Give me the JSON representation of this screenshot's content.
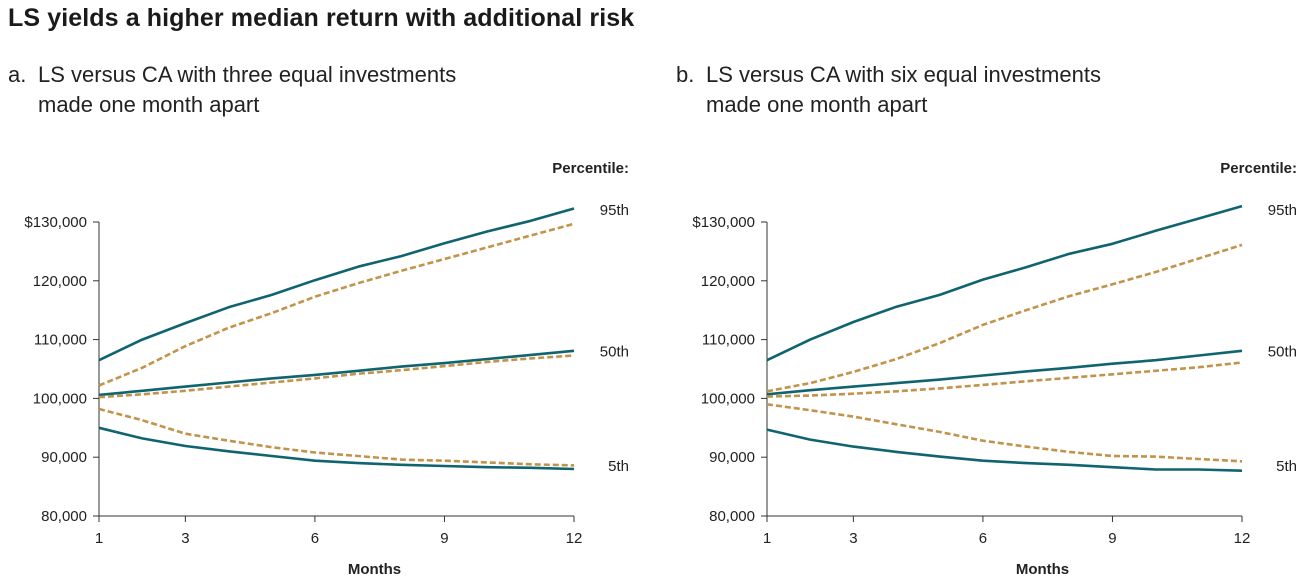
{
  "title": "LS yields a higher median return with additional risk",
  "chart_data": [
    {
      "type": "line",
      "label": "a.",
      "subtitle_line1": "LS versus CA with three equal investments",
      "subtitle_line2": "made one month apart",
      "xlabel": "Months",
      "legend_title": "Percentile:",
      "xlim": [
        1,
        12
      ],
      "ylim": [
        80000,
        130000
      ],
      "x_ticks": [
        1,
        3,
        6,
        9,
        12
      ],
      "y_ticks": [
        80000,
        90000,
        100000,
        110000,
        120000,
        130000
      ],
      "y_tick_labels": [
        "80,000",
        "90,000",
        "100,000",
        "110,000",
        "120,000",
        "$130,000"
      ],
      "percentile_labels": [
        {
          "text": "95th",
          "value": 132000
        },
        {
          "text": "50th",
          "value": 108000
        },
        {
          "text": "5th",
          "value": 88500
        }
      ],
      "x": [
        1,
        2,
        3,
        4,
        5,
        6,
        7,
        8,
        9,
        10,
        11,
        12
      ],
      "series": [
        {
          "name": "LS 95th",
          "style": "solid",
          "values": [
            106500,
            110000,
            112800,
            115500,
            117600,
            120100,
            122400,
            124200,
            126400,
            128400,
            130200,
            132300
          ]
        },
        {
          "name": "CA 95th",
          "style": "dashed",
          "values": [
            102200,
            105200,
            108900,
            112000,
            114500,
            117300,
            119600,
            121700,
            123700,
            125700,
            127700,
            129700
          ]
        },
        {
          "name": "LS 50th",
          "style": "solid",
          "values": [
            100600,
            101300,
            102000,
            102700,
            103400,
            104000,
            104700,
            105400,
            106000,
            106700,
            107400,
            108100
          ]
        },
        {
          "name": "CA 50th",
          "style": "dashed",
          "values": [
            100200,
            100700,
            101300,
            102000,
            102700,
            103400,
            104200,
            104800,
            105500,
            106200,
            106800,
            107300
          ]
        },
        {
          "name": "CA 5th",
          "style": "dashed",
          "values": [
            98200,
            96300,
            94000,
            92800,
            91700,
            90800,
            90200,
            89600,
            89400,
            89100,
            88800,
            88600
          ]
        },
        {
          "name": "LS 5th",
          "style": "solid",
          "values": [
            95000,
            93200,
            91900,
            91000,
            90200,
            89400,
            89000,
            88700,
            88500,
            88300,
            88200,
            88000
          ]
        }
      ]
    },
    {
      "type": "line",
      "label": "b.",
      "subtitle_line1": "LS versus CA with six equal investments",
      "subtitle_line2": "made one month apart",
      "xlabel": "Months",
      "legend_title": "Percentile:",
      "xlim": [
        1,
        12
      ],
      "ylim": [
        80000,
        130000
      ],
      "x_ticks": [
        1,
        3,
        6,
        9,
        12
      ],
      "y_ticks": [
        80000,
        90000,
        100000,
        110000,
        120000,
        130000
      ],
      "y_tick_labels": [
        "80,000",
        "90,000",
        "100,000",
        "110,000",
        "120,000",
        "$130,000"
      ],
      "percentile_labels": [
        {
          "text": "95th",
          "value": 132000
        },
        {
          "text": "50th",
          "value": 108000
        },
        {
          "text": "5th",
          "value": 88500
        }
      ],
      "x": [
        1,
        2,
        3,
        4,
        5,
        6,
        7,
        8,
        9,
        10,
        11,
        12
      ],
      "series": [
        {
          "name": "LS 95th",
          "style": "solid",
          "values": [
            106500,
            110000,
            113000,
            115600,
            117600,
            120200,
            122300,
            124600,
            126300,
            128500,
            130600,
            132700
          ]
        },
        {
          "name": "CA 95th",
          "style": "dashed",
          "values": [
            101200,
            102600,
            104500,
            106700,
            109400,
            112500,
            115000,
            117400,
            119400,
            121500,
            123800,
            126100
          ]
        },
        {
          "name": "LS 50th",
          "style": "solid",
          "values": [
            100700,
            101400,
            102000,
            102600,
            103200,
            103900,
            104600,
            105200,
            105900,
            106500,
            107300,
            108100
          ]
        },
        {
          "name": "CA 50th",
          "style": "dashed",
          "values": [
            100300,
            100500,
            100800,
            101200,
            101700,
            102300,
            102900,
            103500,
            104100,
            104700,
            105300,
            106100
          ]
        },
        {
          "name": "CA 5th",
          "style": "dashed",
          "values": [
            99000,
            98000,
            96900,
            95600,
            94300,
            92800,
            91800,
            90900,
            90200,
            90100,
            89700,
            89300
          ]
        },
        {
          "name": "LS 5th",
          "style": "solid",
          "values": [
            94700,
            93000,
            91800,
            90900,
            90100,
            89400,
            89000,
            88700,
            88300,
            87900,
            87900,
            87700
          ]
        }
      ]
    }
  ],
  "colors": {
    "solid": "#0f6470",
    "dashed": "#c2934a"
  }
}
